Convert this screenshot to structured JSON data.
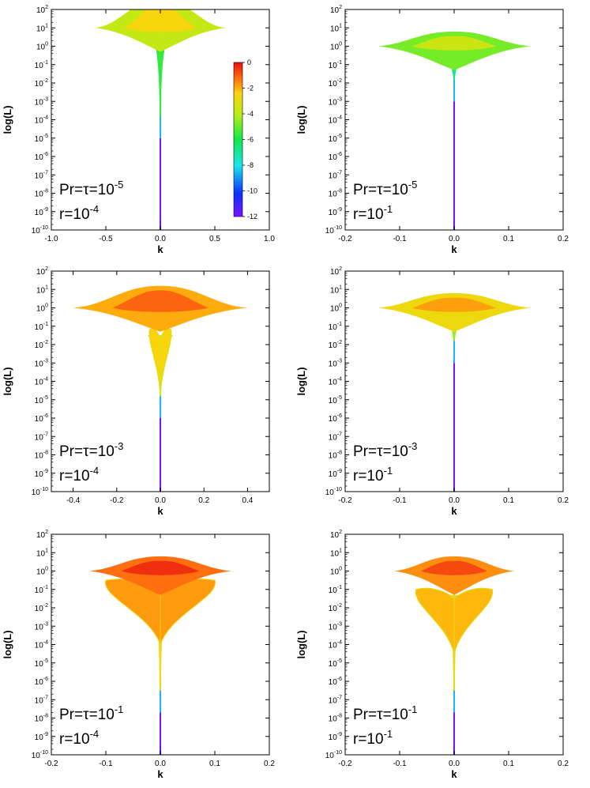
{
  "figure": {
    "colors": {
      "scale": [
        "#7a12ff",
        "#0a30ff",
        "#19e5ee",
        "#11e84a",
        "#b4ee15",
        "#fdd20c",
        "#ff6a10",
        "#e60f10"
      ]
    },
    "colorbar": {
      "ticks": [
        "0",
        "-2",
        "-4",
        "-6",
        "-8",
        "-10",
        "-12"
      ],
      "range": [
        -12,
        0
      ]
    }
  },
  "chart_data": [
    {
      "id": "p11",
      "type": "heatmap",
      "xlabel": "k",
      "ylabel": "log(L)",
      "xlim": [
        -1.0,
        1.0
      ],
      "xticks": [
        "-1.0",
        "-0.5",
        "0.0",
        "0.5",
        "1.0"
      ],
      "ylim_exp": [
        -10,
        2
      ],
      "ytick_base": "10",
      "yticks_exp": [
        "2",
        "1",
        "0",
        "-1",
        "-2",
        "-3",
        "-4",
        "-5",
        "-6",
        "-7",
        "-8",
        "-9",
        "-10"
      ],
      "label1_main": "Pr=τ=10",
      "label1_exp": "-5",
      "label2_main": "r=10",
      "label2_exp": "-4",
      "shape": {
        "top": {
          "y": 1.0,
          "half": 0.6,
          "peak": 0.95,
          "pw": 0.18
        },
        "low": null,
        "stem": {
          "bottom": -10,
          "core": -5
        }
      },
      "dominant_value": -4
    },
    {
      "id": "p12",
      "type": "heatmap",
      "xlabel": "k",
      "ylabel": "log(L)",
      "xlim": [
        -0.2,
        0.2
      ],
      "xticks": [
        "-0.2",
        "-0.1",
        "0.0",
        "0.1",
        "0.2"
      ],
      "ylim_exp": [
        -10,
        2
      ],
      "ytick_base": "10",
      "yticks_exp": [
        "2",
        "1",
        "0",
        "-1",
        "-2",
        "-3",
        "-4",
        "-5",
        "-6",
        "-7",
        "-8",
        "-9",
        "-10"
      ],
      "label1_main": "Pr=τ=10",
      "label1_exp": "-5",
      "label2_main": "r=10",
      "label2_exp": "-1",
      "shape": {
        "top": {
          "y": 0.0,
          "half": 0.14,
          "peak": 0.2,
          "pw": 0.15
        },
        "low": null,
        "stem": {
          "bottom": -10,
          "core": -3
        }
      },
      "dominant_value": -5
    },
    {
      "id": "p21",
      "type": "heatmap",
      "xlabel": "k",
      "ylabel": "log(L)",
      "xlim": [
        -0.5,
        0.5
      ],
      "xticks": [
        "-0.4",
        "-0.2",
        "0.0",
        "0.2",
        "0.4"
      ],
      "ylim_exp": [
        -10,
        2
      ],
      "ytick_base": "10",
      "yticks_exp": [
        "2",
        "1",
        "0",
        "-1",
        "-2",
        "-3",
        "-4",
        "-5",
        "-6",
        "-7",
        "-8",
        "-9",
        "-10"
      ],
      "label1_main": "Pr=τ=10",
      "label1_exp": "-3",
      "label2_main": "r=10",
      "label2_exp": "-4",
      "shape": {
        "top": {
          "y": 0.0,
          "half": 0.4,
          "peak": 0.6,
          "pw": 0.2
        },
        "low": {
          "y": -1.5,
          "half": 0.05
        },
        "stem": {
          "bottom": -10,
          "core": -6
        }
      },
      "dominant_value": -2
    },
    {
      "id": "p22",
      "type": "heatmap",
      "xlabel": "k",
      "ylabel": "log(L)",
      "xlim": [
        -0.2,
        0.2
      ],
      "xticks": [
        "-0.2",
        "-0.1",
        "0.0",
        "0.1",
        "0.2"
      ],
      "ylim_exp": [
        -10,
        2
      ],
      "ytick_base": "10",
      "yticks_exp": [
        "2",
        "1",
        "0",
        "-1",
        "-2",
        "-3",
        "-4",
        "-5",
        "-6",
        "-7",
        "-8",
        "-9",
        "-10"
      ],
      "label1_main": "Pr=τ=10",
      "label1_exp": "-3",
      "label2_main": "r=10",
      "label2_exp": "-1",
      "shape": {
        "top": {
          "y": 0.0,
          "half": 0.14,
          "peak": 0.2,
          "pw": 0.15
        },
        "low": null,
        "stem": {
          "bottom": -10,
          "core": -3
        }
      },
      "dominant_value": -3
    },
    {
      "id": "p31",
      "type": "heatmap",
      "xlabel": "k",
      "ylabel": "log(L)",
      "xlim": [
        -0.2,
        0.2
      ],
      "xticks": [
        "-0.2",
        "-0.1",
        "0.0",
        "0.1",
        "0.2"
      ],
      "ylim_exp": [
        -10,
        2
      ],
      "ytick_base": "10",
      "yticks_exp": [
        "2",
        "1",
        "0",
        "-1",
        "-2",
        "-3",
        "-4",
        "-5",
        "-6",
        "-7",
        "-8",
        "-9",
        "-10"
      ],
      "label1_main": "Pr=τ=10",
      "label1_exp": "-1",
      "label2_main": "r=10",
      "label2_exp": "-4",
      "shape": {
        "top": {
          "y": 0.0,
          "half": 0.13,
          "peak": 0.2,
          "pw": 0.15
        },
        "low": {
          "y": -0.8,
          "half": 0.1
        },
        "stem": {
          "bottom": -10,
          "core": -7.7
        }
      },
      "dominant_value": -1
    },
    {
      "id": "p32",
      "type": "heatmap",
      "xlabel": "k",
      "ylabel": "log(L)",
      "xlim": [
        -0.2,
        0.2
      ],
      "xticks": [
        "-0.2",
        "-0.1",
        "0.0",
        "0.1",
        "0.2"
      ],
      "ylim_exp": [
        -10,
        2
      ],
      "ytick_base": "10",
      "yticks_exp": [
        "2",
        "1",
        "0",
        "-1",
        "-2",
        "-3",
        "-4",
        "-5",
        "-6",
        "-7",
        "-8",
        "-9",
        "-10"
      ],
      "label1_main": "Pr=τ=10",
      "label1_exp": "-1",
      "label2_main": "r=10",
      "label2_exp": "-1",
      "shape": {
        "top": {
          "y": 0.0,
          "half": 0.11,
          "peak": 0.2,
          "pw": 0.15
        },
        "low": {
          "y": -1.3,
          "half": 0.07
        },
        "stem": {
          "bottom": -10,
          "core": -7.7
        }
      },
      "dominant_value": -1.5
    }
  ]
}
